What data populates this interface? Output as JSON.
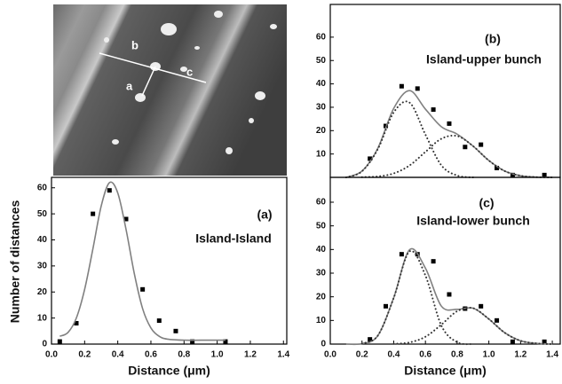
{
  "image": {
    "labels": [
      "a",
      "b",
      "c"
    ]
  },
  "chart_data": [
    {
      "type": "scatter",
      "label": "(a)",
      "title": "Island-Island",
      "xlabel": "Distance (μm)",
      "ylabel": "Number of distances",
      "xlim": [
        0,
        1.42
      ],
      "ylim": [
        0,
        64
      ],
      "xticks": [
        {
          "value": 0,
          "label": "0.0"
        },
        {
          "value": 0.2,
          "label": "0.2"
        },
        {
          "value": 0.4,
          "label": "0.4"
        },
        {
          "value": 0.6,
          "label": "0.6"
        },
        {
          "value": 0.8,
          "label": "0.8"
        },
        {
          "value": 1,
          "label": "1.0"
        },
        {
          "value": 1.2,
          "label": "1.2"
        },
        {
          "value": 1.4,
          "label": "1.4"
        }
      ],
      "yticks": [
        0,
        10,
        20,
        30,
        40,
        50,
        60
      ],
      "series": [
        {
          "marker": "square",
          "color": "#000000",
          "x": [
            0.05,
            0.15,
            0.25,
            0.35,
            0.45,
            0.55,
            0.65,
            0.75,
            0.85,
            1.05
          ],
          "values": [
            1,
            8,
            50,
            59,
            48,
            21,
            9,
            5,
            1,
            1
          ]
        },
        {
          "line_style": "solid",
          "color": "#808080",
          "x": [
            0.05,
            0.1,
            0.15,
            0.2,
            0.25,
            0.3,
            0.35,
            0.4,
            0.45,
            0.5,
            0.55,
            0.6,
            0.65,
            0.7,
            0.8,
            0.9,
            1.05
          ],
          "values": [
            3,
            4.5,
            10,
            21,
            36.6,
            53,
            62,
            58,
            44,
            27,
            13.6,
            6.2,
            3,
            1.9,
            1.5,
            1.5,
            1.5
          ]
        }
      ]
    },
    {
      "type": "scatter",
      "label": "(b)",
      "title": "Island-upper bunch",
      "xlim": [
        0,
        1.45
      ],
      "ylim": [
        0,
        74
      ],
      "yticks": [
        10,
        20,
        30,
        40,
        50,
        60
      ],
      "series": [
        {
          "marker": "square",
          "color": "#000000",
          "x": [
            0.25,
            0.35,
            0.45,
            0.55,
            0.65,
            0.75,
            0.85,
            0.95,
            1.05,
            1.15,
            1.35
          ],
          "values": [
            8,
            22,
            39,
            38,
            29,
            23,
            13,
            14,
            4,
            1,
            1
          ]
        },
        {
          "line_style": "solid",
          "color": "#808080",
          "x": [
            0.1,
            0.2,
            0.3,
            0.4,
            0.5,
            0.6,
            0.7,
            0.8,
            0.9,
            1.0,
            1.1,
            1.2,
            1.3,
            1.4
          ],
          "values": [
            0,
            2.7,
            12.5,
            29.5,
            37.1,
            29.2,
            21.7,
            18.5,
            13.4,
            7.2,
            2.7,
            0.7,
            0.1,
            0
          ]
        },
        {
          "line_style": "dotted",
          "color": "#333333",
          "x": [
            0.1,
            0.2,
            0.3,
            0.4,
            0.5,
            0.6,
            0.7,
            0.8,
            0.9
          ],
          "values": [
            0,
            2.6,
            12.1,
            27.8,
            32,
            18.3,
            5.2,
            0.8,
            0
          ]
        },
        {
          "line_style": "dotted",
          "color": "#333333",
          "x": [
            0.2,
            0.3,
            0.4,
            0.5,
            0.6,
            0.7,
            0.8,
            0.9,
            1.0,
            1.1,
            1.2,
            1.3,
            1.4
          ],
          "values": [
            0.1,
            0.4,
            1.7,
            5.1,
            10.9,
            16.5,
            17.7,
            13.4,
            7.2,
            2.7,
            0.7,
            0.1,
            0
          ]
        }
      ]
    },
    {
      "type": "scatter",
      "label": "(c)",
      "title": "Island-lower bunch",
      "xlabel": "Distance (μm)",
      "xlim": [
        0,
        1.45
      ],
      "ylim": [
        0,
        70.5
      ],
      "xticks": [
        {
          "value": 0,
          "label": "0.0"
        },
        {
          "value": 0.2,
          "label": "0.2"
        },
        {
          "value": 0.4,
          "label": "0.4"
        },
        {
          "value": 0.6,
          "label": "0.6"
        },
        {
          "value": 0.8,
          "label": "0.8"
        },
        {
          "value": 1,
          "label": "1.0"
        },
        {
          "value": 1.2,
          "label": "1.2"
        },
        {
          "value": 1.4,
          "label": "1.4"
        }
      ],
      "yticks": [
        0,
        10,
        20,
        30,
        40,
        50,
        60
      ],
      "series": [
        {
          "marker": "square",
          "color": "#000000",
          "x": [
            0.25,
            0.35,
            0.45,
            0.55,
            0.65,
            0.75,
            0.85,
            0.95,
            1.05,
            1.15,
            1.35
          ],
          "values": [
            2,
            16,
            38,
            38,
            35,
            21,
            15,
            16,
            10,
            1,
            1
          ]
        },
        {
          "line_style": "solid",
          "color": "#808080",
          "x": [
            0.1,
            0.2,
            0.3,
            0.4,
            0.5,
            0.6,
            0.7,
            0.8,
            0.9,
            1.0,
            1.1,
            1.2,
            1.3,
            1.4
          ],
          "values": [
            0,
            0.2,
            3.6,
            19.6,
            39.9,
            32.1,
            16.1,
            14.7,
            15.2,
            10.6,
            4.8,
            1.4,
            0.3,
            0
          ]
        },
        {
          "line_style": "dotted",
          "color": "#333333",
          "x": [
            0.2,
            0.3,
            0.4,
            0.5,
            0.6,
            0.7,
            0.8,
            0.9
          ],
          "values": [
            0.2,
            3.6,
            19.5,
            39.2,
            29,
            7.9,
            0.8,
            0
          ]
        },
        {
          "line_style": "dotted",
          "color": "#333333",
          "x": [
            0.4,
            0.5,
            0.6,
            0.7,
            0.8,
            0.9,
            1.0,
            1.1,
            1.2,
            1.3,
            1.4
          ],
          "values": [
            0.1,
            0.7,
            3.1,
            8.2,
            13.9,
            15.2,
            10.6,
            4.8,
            1.4,
            0.3,
            0
          ]
        }
      ]
    }
  ]
}
